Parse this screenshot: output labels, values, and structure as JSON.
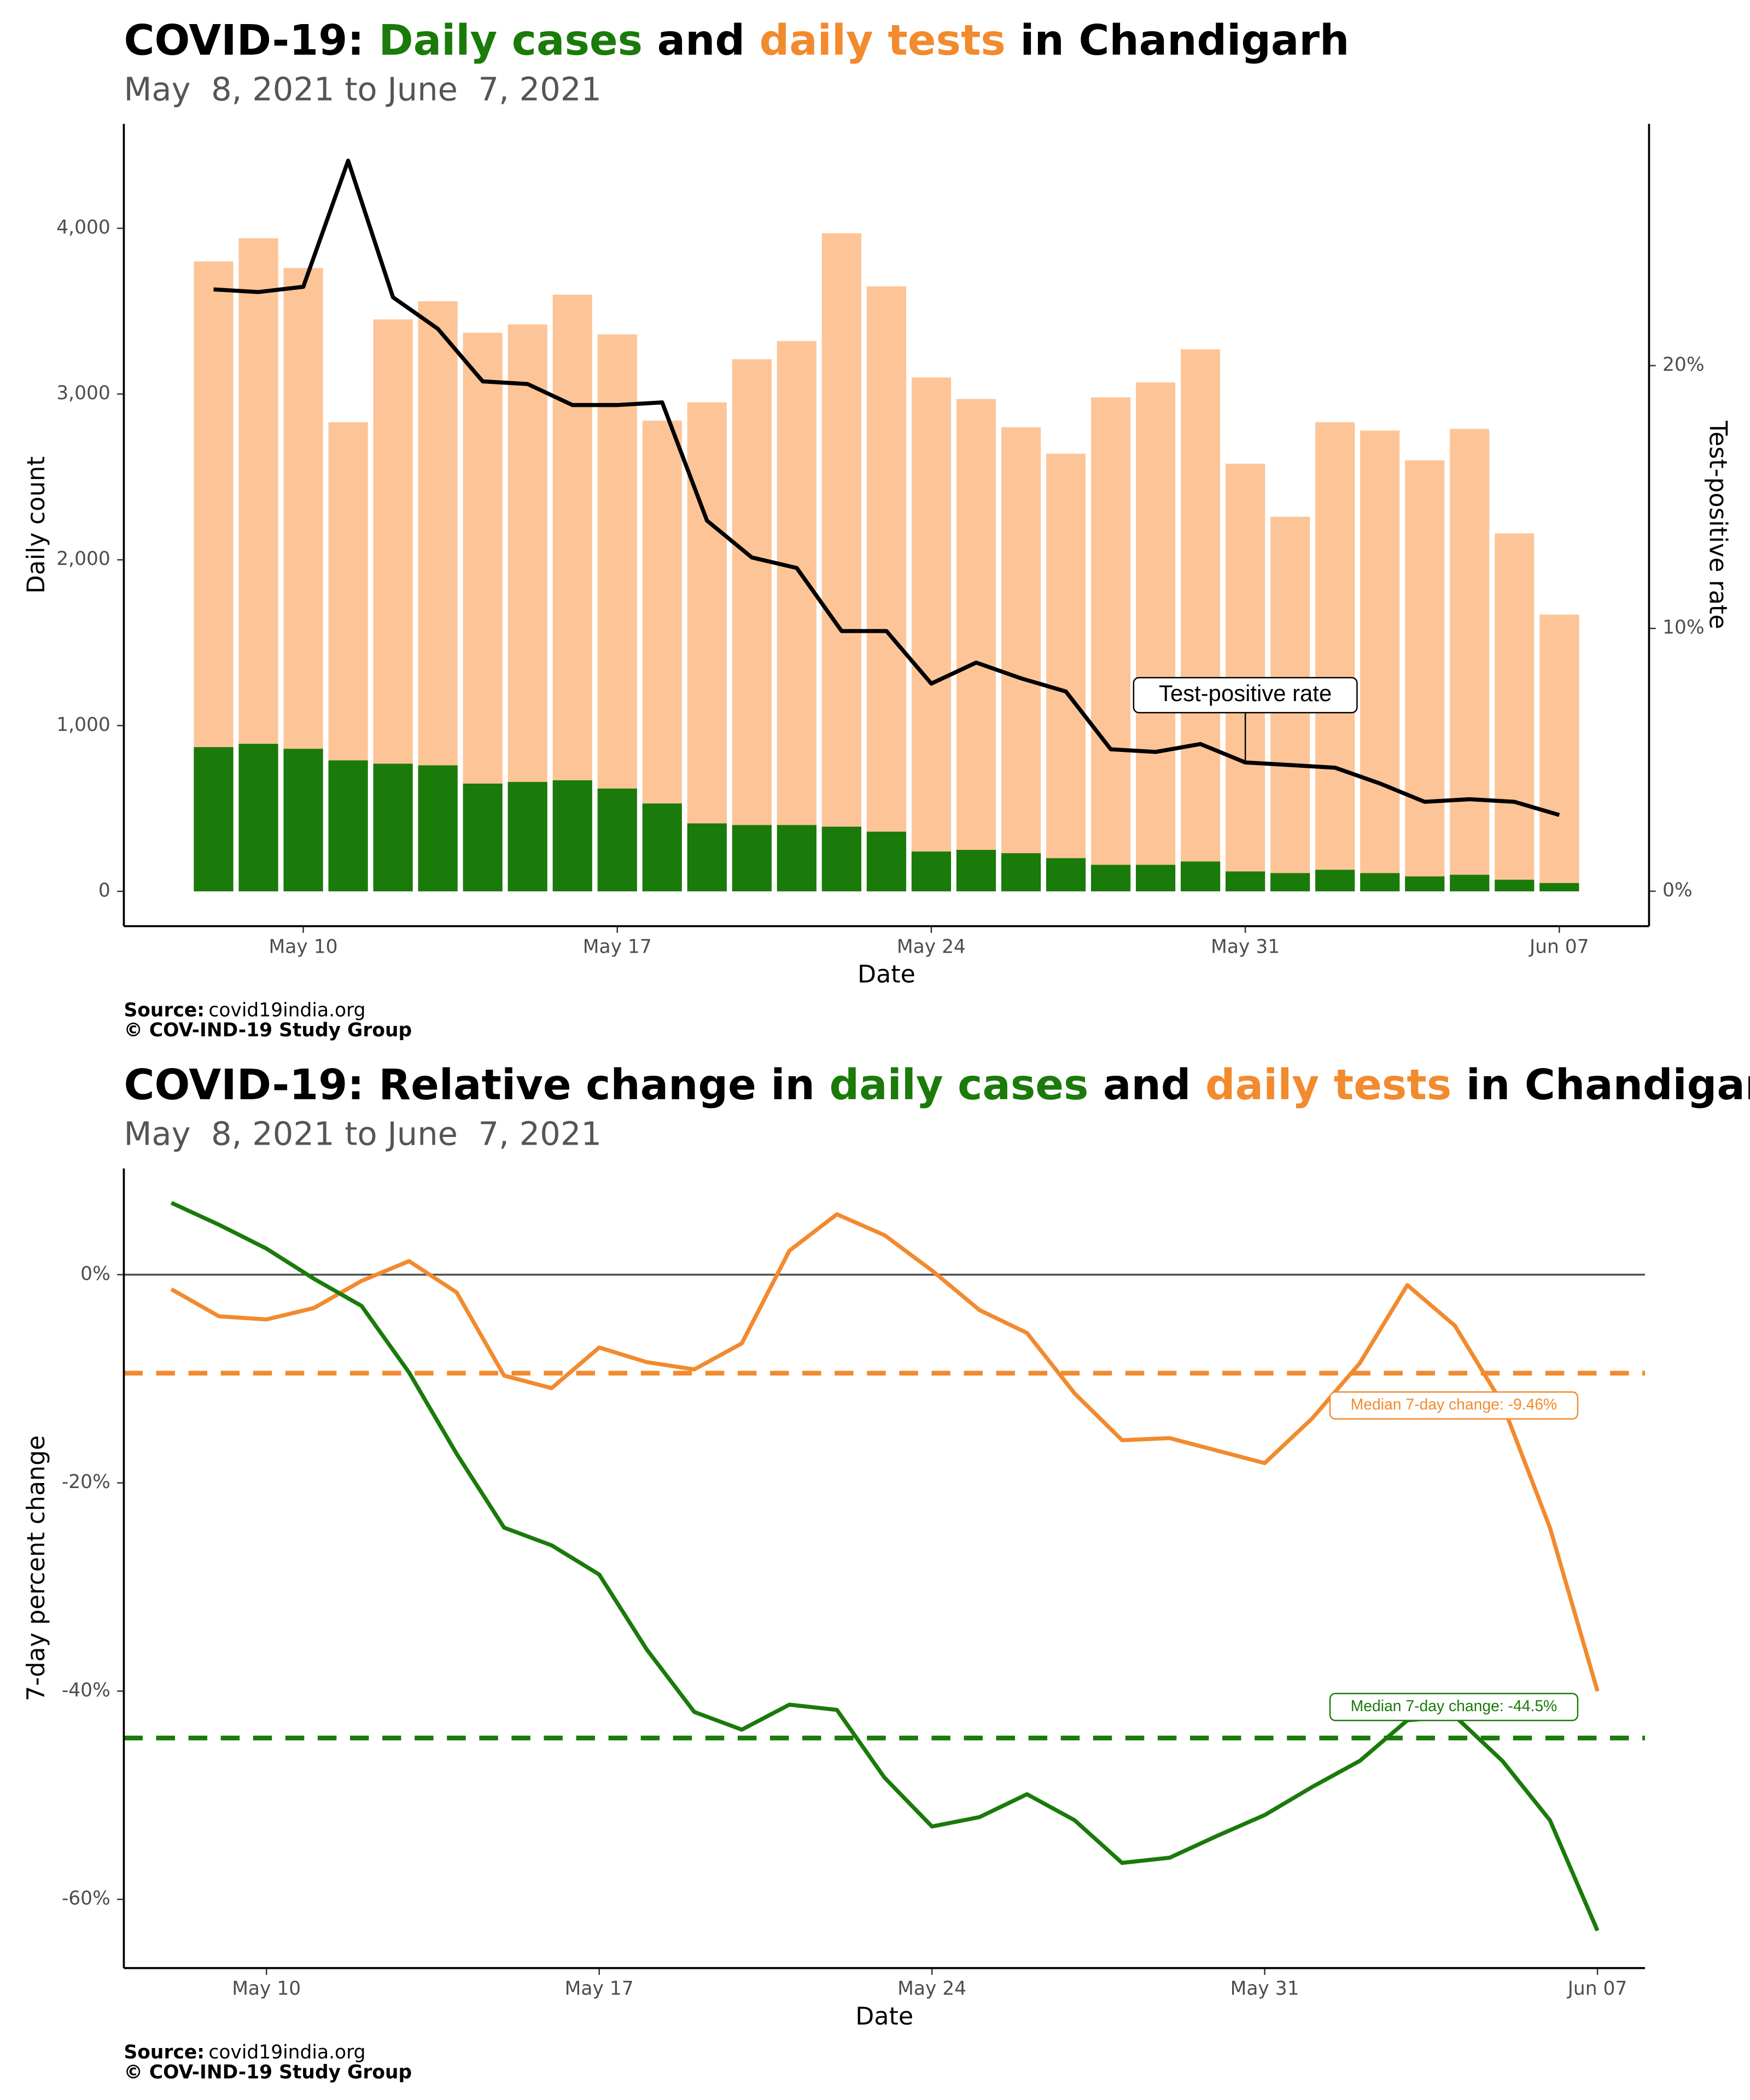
{
  "chart_data": [
    {
      "type": "bar",
      "title": [
        {
          "text": "COVID-19: ",
          "color": "#000000"
        },
        {
          "text": "Daily cases",
          "color": "#1a7a0a"
        },
        {
          "text": " and ",
          "color": "#000000"
        },
        {
          "text": "daily tests",
          "color": "#f28a2e"
        },
        {
          "text": " in Chandigarh",
          "color": "#000000"
        }
      ],
      "subtitle": "May  8, 2021 to June  7, 2021",
      "x_label": "Date",
      "y_label": "Daily count",
      "y2_label": "Test-positive rate",
      "source_label": "Source:",
      "source": "covid19india.org",
      "copyright": "© COV-IND-19 Study Group",
      "x": [
        "2021-05-08",
        "2021-05-09",
        "2021-05-10",
        "2021-05-11",
        "2021-05-12",
        "2021-05-13",
        "2021-05-14",
        "2021-05-15",
        "2021-05-16",
        "2021-05-17",
        "2021-05-18",
        "2021-05-19",
        "2021-05-20",
        "2021-05-21",
        "2021-05-22",
        "2021-05-23",
        "2021-05-24",
        "2021-05-25",
        "2021-05-26",
        "2021-05-27",
        "2021-05-28",
        "2021-05-29",
        "2021-05-30",
        "2021-05-31",
        "2021-06-01",
        "2021-06-02",
        "2021-06-03",
        "2021-06-04",
        "2021-06-05",
        "2021-06-06",
        "2021-06-07"
      ],
      "xlim": [
        "2021-05-06",
        "2021-06-09"
      ],
      "xticks": [
        {
          "value": "2021-05-10",
          "label": "May 10"
        },
        {
          "value": "2021-05-17",
          "label": "May 17"
        },
        {
          "value": "2021-05-24",
          "label": "May 24"
        },
        {
          "value": "2021-05-31",
          "label": "May 31"
        },
        {
          "value": "2021-06-07",
          "label": "Jun 07"
        }
      ],
      "ylim": [
        -210,
        4630
      ],
      "yticks": [
        0,
        {
          "value": 1000,
          "label": "1,000"
        },
        {
          "value": 2000,
          "label": "2,000"
        },
        {
          "value": 3000,
          "label": "3,000"
        },
        {
          "value": 4000,
          "label": "4,000"
        }
      ],
      "y2lim": [
        -1.33,
        29.2
      ],
      "y2ticks": [
        {
          "value": 0,
          "label": "0%"
        },
        {
          "value": 10,
          "label": "10%"
        },
        {
          "value": 20,
          "label": "20%"
        }
      ],
      "series": [
        {
          "type": "bar",
          "color": "#fdc597",
          "values": [
            3800,
            3940,
            3760,
            2830,
            3450,
            3560,
            3370,
            3420,
            3600,
            3360,
            2840,
            2950,
            3210,
            3320,
            3970,
            3650,
            3100,
            2970,
            2800,
            2640,
            2980,
            3070,
            3270,
            2580,
            2260,
            2830,
            2780,
            2600,
            2790,
            2160,
            1670
          ]
        },
        {
          "type": "bar",
          "color": "#1a7a0a",
          "values": [
            870,
            890,
            860,
            790,
            770,
            760,
            650,
            660,
            670,
            620,
            530,
            410,
            400,
            400,
            390,
            360,
            240,
            250,
            230,
            200,
            160,
            160,
            180,
            120,
            110,
            130,
            110,
            90,
            100,
            70,
            50
          ]
        },
        {
          "type": "line",
          "axis": "y2",
          "color": "#000000",
          "values": [
            22.9,
            22.8,
            23.0,
            27.8,
            22.6,
            21.4,
            19.4,
            19.3,
            18.5,
            18.5,
            18.6,
            14.1,
            12.7,
            12.3,
            9.9,
            9.9,
            7.9,
            8.7,
            8.1,
            7.6,
            5.4,
            5.3,
            5.6,
            4.9,
            4.8,
            4.7,
            4.1,
            3.4,
            3.5,
            3.4,
            2.9
          ]
        }
      ],
      "annotation": {
        "text": "Test-positive rate",
        "x": "2021-05-31"
      }
    },
    {
      "type": "line",
      "title": [
        {
          "text": "COVID-19: Relative change in ",
          "color": "#000000"
        },
        {
          "text": "daily cases",
          "color": "#1a7a0a"
        },
        {
          "text": " and ",
          "color": "#000000"
        },
        {
          "text": "daily tests",
          "color": "#f28a2e"
        },
        {
          "text": " in Chandigarh",
          "color": "#000000"
        }
      ],
      "subtitle": "May  8, 2021 to June  7, 2021",
      "x_label": "Date",
      "y_label": "7-day percent change",
      "source_label": "Source:",
      "source": "covid19india.org",
      "copyright": "© COV-IND-19 Study Group",
      "x": [
        "2021-05-08",
        "2021-05-09",
        "2021-05-10",
        "2021-05-11",
        "2021-05-12",
        "2021-05-13",
        "2021-05-14",
        "2021-05-15",
        "2021-05-16",
        "2021-05-17",
        "2021-05-18",
        "2021-05-19",
        "2021-05-20",
        "2021-05-21",
        "2021-05-22",
        "2021-05-23",
        "2021-05-24",
        "2021-05-25",
        "2021-05-26",
        "2021-05-27",
        "2021-05-28",
        "2021-05-29",
        "2021-05-30",
        "2021-05-31",
        "2021-06-01",
        "2021-06-02",
        "2021-06-03",
        "2021-06-04",
        "2021-06-05",
        "2021-06-06",
        "2021-06-07"
      ],
      "xlim": [
        "2021-05-07",
        "2021-06-08"
      ],
      "xticks": [
        {
          "value": "2021-05-10",
          "label": "May 10"
        },
        {
          "value": "2021-05-17",
          "label": "May 17"
        },
        {
          "value": "2021-05-24",
          "label": "May 24"
        },
        {
          "value": "2021-05-31",
          "label": "May 31"
        },
        {
          "value": "2021-06-07",
          "label": "Jun 07"
        }
      ],
      "ylim": [
        -66.6,
        10.2
      ],
      "yticks": [
        {
          "value": -60,
          "label": "-60%"
        },
        {
          "value": -40,
          "label": "-40%"
        },
        {
          "value": -20,
          "label": "-20%"
        },
        {
          "value": 0,
          "label": "0%"
        }
      ],
      "reference_line": 0,
      "series": [
        {
          "type": "line",
          "color": "#f28a2e",
          "values": [
            -1.4,
            -4.0,
            -4.3,
            -3.2,
            -0.6,
            1.3,
            -1.7,
            -9.7,
            -10.9,
            -7.0,
            -8.4,
            -9.1,
            -6.6,
            2.3,
            5.8,
            3.8,
            0.4,
            -3.4,
            -5.6,
            -11.4,
            -15.9,
            -15.7,
            -16.9,
            -18.1,
            -13.8,
            -8.5,
            -1.0,
            -4.9,
            -12.4,
            -24.3,
            -40.0
          ]
        },
        {
          "type": "line",
          "color": "#1a7a0a",
          "values": [
            6.9,
            4.8,
            2.5,
            -0.4,
            -3.0,
            -9.4,
            -17.2,
            -24.3,
            -26.0,
            -28.8,
            -36.0,
            -42.0,
            -43.7,
            -41.3,
            -41.8,
            -48.3,
            -53.0,
            -52.1,
            -49.9,
            -52.4,
            -56.5,
            -56.0,
            -53.9,
            -51.9,
            -49.2,
            -46.7,
            -42.8,
            -42.4,
            -46.7,
            -52.4,
            -63.0
          ]
        }
      ],
      "hlines": [
        {
          "value": -9.46,
          "label": "Median 7-day change: -9.46%",
          "color": "#f28a2e"
        },
        {
          "value": -44.5,
          "label": "Median 7-day change: -44.5%",
          "color": "#1a7a0a"
        }
      ]
    }
  ]
}
